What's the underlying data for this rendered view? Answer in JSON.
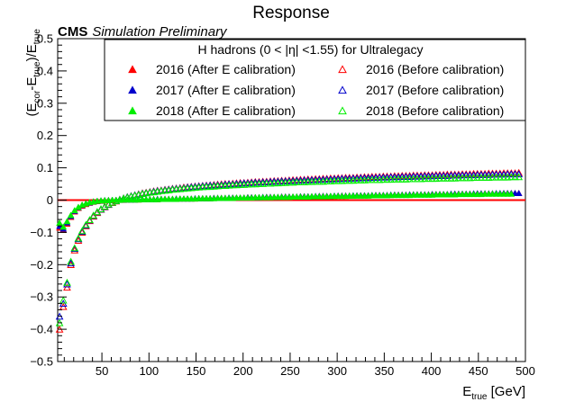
{
  "chart_data": {
    "type": "scatter",
    "title": "Response",
    "cms_label": "CMS",
    "cms_sublabel": "Simulation Preliminary",
    "xlabel": {
      "main": "E",
      "sub": "true",
      "rest": " [GeV]"
    },
    "ylabel": {
      "p1": "(E",
      "s1": "cor",
      "p2": "-E",
      "s2": "true",
      "p3": ")/E",
      "s3": "true"
    },
    "xlim": [
      3,
      500
    ],
    "ylim": [
      -0.5,
      0.5
    ],
    "x_ticks": [
      50,
      100,
      150,
      200,
      250,
      300,
      350,
      400,
      450,
      500
    ],
    "y_ticks": [
      -0.5,
      -0.4,
      -0.3,
      -0.2,
      -0.1,
      0,
      0.1,
      0.2,
      0.3,
      0.4,
      0.5
    ],
    "reference_line": {
      "y": 0,
      "color": "#ff0000"
    },
    "legend": {
      "header": "H hadrons (0 < |η| <1.55) for Ultralegacy",
      "placement": "top-right"
    },
    "x": [
      5,
      9,
      13,
      17,
      21,
      25,
      29,
      33,
      37,
      41,
      45,
      49,
      53,
      57,
      61,
      65,
      69,
      73,
      77,
      81,
      85,
      89,
      93,
      97,
      101,
      105,
      109,
      113,
      117,
      121,
      125,
      129,
      133,
      137,
      141,
      145,
      149,
      153,
      157,
      161,
      165,
      169,
      173,
      177,
      181,
      185,
      189,
      193,
      197,
      201,
      205,
      209,
      213,
      217,
      221,
      225,
      229,
      233,
      237,
      241,
      245,
      249,
      253,
      257,
      261,
      265,
      269,
      273,
      277,
      281,
      285,
      289,
      293,
      297,
      301,
      305,
      309,
      313,
      317,
      321,
      325,
      329,
      333,
      337,
      341,
      345,
      349,
      353,
      357,
      361,
      365,
      369,
      373,
      377,
      381,
      385,
      389,
      393,
      397,
      401,
      405,
      409,
      413,
      417,
      421,
      425,
      429,
      433,
      437,
      441,
      445,
      449,
      453,
      457,
      461,
      465,
      469,
      473,
      477,
      481,
      485,
      489,
      493
    ],
    "series": [
      {
        "name": "2016 (After E calibration)",
        "color": "#ff0000",
        "marker": "triangle-filled",
        "values": [
          -0.085,
          -0.092,
          -0.073,
          -0.052,
          -0.035,
          -0.024,
          -0.017,
          -0.012,
          -0.008,
          -0.005,
          -0.003,
          -0.002,
          -0.001,
          0,
          0,
          0.001,
          0.001,
          0.001,
          0.002,
          0.002,
          0.002,
          0.002,
          0.003,
          0.003,
          0.003,
          0.003,
          0.003,
          0.004,
          0.004,
          0.004,
          0.004,
          0.004,
          0.005,
          0.005,
          0.005,
          0.005,
          0.005,
          0.006,
          0.006,
          0.006,
          0.006,
          0.007,
          0.007,
          0.007,
          0.007,
          0.007,
          0.008,
          0.008,
          0.008,
          0.008,
          0.009,
          0.009,
          0.009,
          0.009,
          0.009,
          0.01,
          0.01,
          0.01,
          0.01,
          0.011,
          0.011,
          0.011,
          0.011,
          0.011,
          0.012,
          0.012,
          0.012,
          0.012,
          0.012,
          0.013,
          0.013,
          0.013,
          0.013,
          0.013,
          0.014,
          0.014,
          0.014,
          0.014,
          0.014,
          0.015,
          0.015,
          0.015,
          0.015,
          0.015,
          0.016,
          0.016,
          0.016,
          0.016,
          0.016,
          0.017,
          0.017,
          0.017,
          0.017,
          0.017,
          0.018,
          0.018,
          0.018,
          0.018,
          0.018,
          0.019,
          0.019,
          0.019,
          0.019,
          0.019,
          0.019,
          0.02,
          0.02,
          0.02,
          0.02,
          0.02,
          0.02,
          0.021,
          0.021,
          0.021,
          0.021,
          0.021,
          0.021,
          0.021,
          0.022,
          0.022,
          0.022,
          0.022,
          0.022
        ]
      },
      {
        "name": "2017 (After E calibration)",
        "color": "#0000cc",
        "marker": "triangle-filled",
        "values": [
          -0.08,
          -0.088,
          -0.069,
          -0.049,
          -0.033,
          -0.022,
          -0.015,
          -0.01,
          -0.007,
          -0.004,
          -0.002,
          -0.001,
          0,
          0,
          0.001,
          0.001,
          0.001,
          0.002,
          0.002,
          0.002,
          0.002,
          0.003,
          0.003,
          0.003,
          0.003,
          0.003,
          0.004,
          0.004,
          0.004,
          0.004,
          0.004,
          0.005,
          0.005,
          0.005,
          0.005,
          0.005,
          0.006,
          0.006,
          0.006,
          0.006,
          0.006,
          0.007,
          0.007,
          0.007,
          0.007,
          0.008,
          0.008,
          0.008,
          0.008,
          0.008,
          0.009,
          0.009,
          0.009,
          0.009,
          0.01,
          0.01,
          0.01,
          0.01,
          0.01,
          0.011,
          0.011,
          0.011,
          0.011,
          0.011,
          0.012,
          0.012,
          0.012,
          0.012,
          0.013,
          0.013,
          0.013,
          0.013,
          0.013,
          0.014,
          0.014,
          0.014,
          0.014,
          0.014,
          0.015,
          0.015,
          0.015,
          0.015,
          0.015,
          0.016,
          0.016,
          0.016,
          0.016,
          0.016,
          0.017,
          0.017,
          0.017,
          0.017,
          0.017,
          0.018,
          0.018,
          0.018,
          0.018,
          0.018,
          0.018,
          0.019,
          0.019,
          0.019,
          0.019,
          0.019,
          0.02,
          0.02,
          0.02,
          0.02,
          0.02,
          0.02,
          0.021,
          0.021,
          0.021,
          0.021,
          0.021,
          0.021,
          0.022,
          0.022,
          0.022,
          0.022,
          0.022,
          0.022,
          0.022
        ]
      },
      {
        "name": "2018 (After E calibration)",
        "color": "#00ee00",
        "marker": "triangle-filled",
        "values": [
          -0.07,
          -0.082,
          -0.065,
          -0.046,
          -0.031,
          -0.021,
          -0.014,
          -0.01,
          -0.006,
          -0.004,
          -0.002,
          -0.001,
          0,
          0,
          0.001,
          0.001,
          0.001,
          0.002,
          0.002,
          0.002,
          0.002,
          0.002,
          0.003,
          0.003,
          0.003,
          0.003,
          0.003,
          0.004,
          0.004,
          0.004,
          0.004,
          0.004,
          0.005,
          0.005,
          0.005,
          0.005,
          0.005,
          0.006,
          0.006,
          0.006,
          0.006,
          0.006,
          0.007,
          0.007,
          0.007,
          0.007,
          0.007,
          0.008,
          0.008,
          0.008,
          0.008,
          0.008,
          0.009,
          0.009,
          0.009,
          0.009,
          0.009,
          0.01,
          0.01,
          0.01,
          0.01,
          0.01,
          0.011,
          0.011,
          0.011,
          0.011,
          0.011,
          0.012,
          0.012,
          0.012,
          0.012,
          0.012,
          0.013,
          0.013,
          0.013,
          0.013,
          0.013,
          0.014,
          0.014,
          0.014,
          0.014,
          0.014,
          0.014,
          0.015,
          0.015,
          0.015,
          0.015,
          0.015,
          0.016,
          0.016,
          0.016,
          0.016,
          0.016,
          0.016,
          0.017,
          0.017,
          0.017,
          0.017,
          0.017,
          0.017,
          0.018,
          0.018,
          0.018,
          0.018,
          0.018,
          0.018,
          0.019,
          0.019,
          0.019,
          0.019,
          0.019,
          0.019,
          0.019,
          0.02,
          0.02,
          0.02,
          0.02,
          0.02,
          0.02,
          0.02,
          0.02
        ]
      },
      {
        "name": "2016 (Before calibration)",
        "color": "#ff0000",
        "marker": "triangle-open",
        "values": [
          -0.4,
          -0.33,
          -0.27,
          -0.2,
          -0.155,
          -0.125,
          -0.1,
          -0.08,
          -0.064,
          -0.05,
          -0.039,
          -0.029,
          -0.021,
          -0.014,
          -0.008,
          -0.003,
          0.002,
          0.006,
          0.01,
          0.013,
          0.016,
          0.019,
          0.022,
          0.024,
          0.026,
          0.028,
          0.03,
          0.031,
          0.033,
          0.034,
          0.036,
          0.037,
          0.038,
          0.04,
          0.041,
          0.042,
          0.043,
          0.044,
          0.045,
          0.046,
          0.047,
          0.048,
          0.049,
          0.05,
          0.051,
          0.051,
          0.052,
          0.053,
          0.054,
          0.054,
          0.055,
          0.056,
          0.057,
          0.057,
          0.058,
          0.058,
          0.059,
          0.06,
          0.06,
          0.061,
          0.061,
          0.062,
          0.063,
          0.063,
          0.064,
          0.064,
          0.065,
          0.065,
          0.066,
          0.066,
          0.067,
          0.067,
          0.068,
          0.068,
          0.069,
          0.069,
          0.07,
          0.07,
          0.07,
          0.071,
          0.071,
          0.072,
          0.072,
          0.073,
          0.073,
          0.073,
          0.074,
          0.074,
          0.074,
          0.075,
          0.075,
          0.076,
          0.076,
          0.076,
          0.077,
          0.077,
          0.077,
          0.078,
          0.078,
          0.078,
          0.079,
          0.079,
          0.079,
          0.08,
          0.08,
          0.08,
          0.08,
          0.081,
          0.081,
          0.081,
          0.082,
          0.082,
          0.082,
          0.082,
          0.083,
          0.083,
          0.083,
          0.083,
          0.084,
          0.084,
          0.084,
          0.084,
          0.085
        ]
      },
      {
        "name": "2017 (Before calibration)",
        "color": "#0000cc",
        "marker": "triangle-open",
        "values": [
          -0.36,
          -0.32,
          -0.26,
          -0.195,
          -0.15,
          -0.12,
          -0.097,
          -0.078,
          -0.062,
          -0.048,
          -0.037,
          -0.028,
          -0.02,
          -0.013,
          -0.007,
          -0.002,
          0.002,
          0.006,
          0.01,
          0.013,
          0.016,
          0.018,
          0.021,
          0.023,
          0.025,
          0.027,
          0.029,
          0.03,
          0.032,
          0.033,
          0.035,
          0.036,
          0.037,
          0.038,
          0.04,
          0.041,
          0.042,
          0.043,
          0.044,
          0.045,
          0.046,
          0.046,
          0.047,
          0.048,
          0.049,
          0.05,
          0.05,
          0.051,
          0.052,
          0.053,
          0.053,
          0.054,
          0.055,
          0.055,
          0.056,
          0.056,
          0.057,
          0.058,
          0.058,
          0.059,
          0.059,
          0.06,
          0.06,
          0.061,
          0.061,
          0.062,
          0.062,
          0.063,
          0.063,
          0.064,
          0.064,
          0.065,
          0.065,
          0.066,
          0.066,
          0.067,
          0.067,
          0.067,
          0.068,
          0.068,
          0.069,
          0.069,
          0.069,
          0.07,
          0.07,
          0.071,
          0.071,
          0.071,
          0.072,
          0.072,
          0.072,
          0.073,
          0.073,
          0.073,
          0.074,
          0.074,
          0.074,
          0.075,
          0.075,
          0.075,
          0.076,
          0.076,
          0.076,
          0.076,
          0.077,
          0.077,
          0.077,
          0.078,
          0.078,
          0.078,
          0.078,
          0.079,
          0.079,
          0.079,
          0.079,
          0.08,
          0.08,
          0.08,
          0.08,
          0.081,
          0.081,
          0.081,
          0.081
        ]
      },
      {
        "name": "2018 (Before calibration)",
        "color": "#00ee00",
        "marker": "triangle-open",
        "values": [
          -0.38,
          -0.31,
          -0.255,
          -0.19,
          -0.148,
          -0.118,
          -0.095,
          -0.076,
          -0.061,
          -0.047,
          -0.036,
          -0.027,
          -0.019,
          -0.012,
          -0.007,
          -0.002,
          0.002,
          0.006,
          0.009,
          0.012,
          0.015,
          0.017,
          0.02,
          0.022,
          0.024,
          0.025,
          0.027,
          0.029,
          0.03,
          0.031,
          0.033,
          0.034,
          0.035,
          0.036,
          0.037,
          0.038,
          0.039,
          0.04,
          0.041,
          0.042,
          0.042,
          0.043,
          0.044,
          0.045,
          0.045,
          0.046,
          0.047,
          0.047,
          0.048,
          0.048,
          0.049,
          0.05,
          0.05,
          0.051,
          0.051,
          0.052,
          0.052,
          0.053,
          0.053,
          0.054,
          0.054,
          0.055,
          0.055,
          0.056,
          0.056,
          0.056,
          0.057,
          0.057,
          0.058,
          0.058,
          0.058,
          0.059,
          0.059,
          0.06,
          0.06,
          0.06,
          0.061,
          0.061,
          0.061,
          0.062,
          0.062,
          0.062,
          0.063,
          0.063,
          0.063,
          0.063,
          0.064,
          0.064,
          0.064,
          0.065,
          0.065,
          0.065,
          0.065,
          0.066,
          0.066,
          0.066,
          0.066,
          0.067,
          0.067,
          0.067,
          0.067,
          0.068,
          0.068,
          0.068,
          0.068,
          0.068,
          0.069,
          0.069,
          0.069,
          0.069,
          0.07,
          0.07,
          0.07,
          0.07,
          0.07,
          0.071,
          0.071,
          0.071,
          0.071,
          0.071,
          0.072,
          0.072,
          0.072
        ]
      }
    ]
  }
}
